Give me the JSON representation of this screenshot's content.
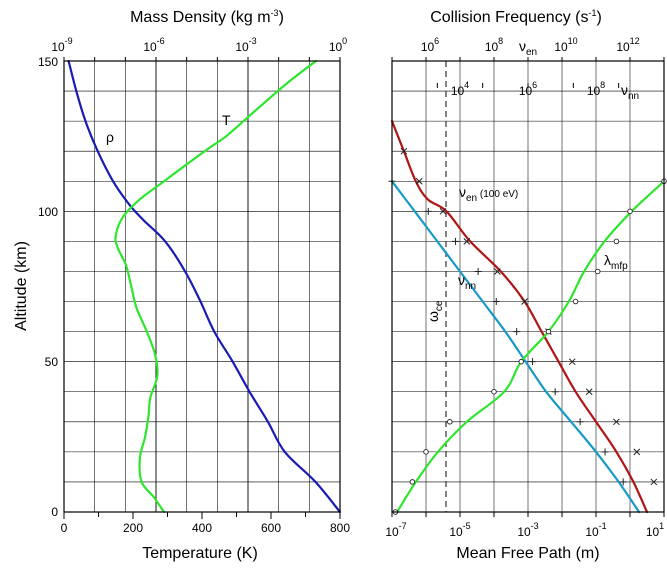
{
  "chart_data": [
    {
      "type": "line",
      "panel": "left",
      "title_prefix": "Mass Density (kg m",
      "title_exp": "-3",
      "title_suffix": ")",
      "xlabel": "Temperature (K)",
      "ylabel": "Altitude (km)",
      "xlim": [
        0,
        800
      ],
      "ylim": [
        0,
        150
      ],
      "x_ticks": [
        "0",
        "200",
        "400",
        "600",
        "800"
      ],
      "y_ticks": [
        "0",
        "50",
        "100",
        "150"
      ],
      "top_axis": {
        "scale": "log",
        "lim_exp": [
          -9,
          0
        ],
        "tick_base": "10",
        "tick_exps": [
          "-9",
          "-6",
          "-3",
          "0"
        ]
      },
      "series": [
        {
          "name": "ρ",
          "axis": "top",
          "color": "#1a1ab4",
          "points": [
            [
              -8.85,
              150
            ],
            [
              -8.6,
              140
            ],
            [
              -8.3,
              130
            ],
            [
              -7.9,
              120
            ],
            [
              -7.4,
              110
            ],
            [
              -6.85,
              102
            ],
            [
              -6.4,
              97
            ],
            [
              -5.7,
              90
            ],
            [
              -5.05,
              80
            ],
            [
              -4.55,
              70
            ],
            [
              -4.1,
              60
            ],
            [
              -3.5,
              50
            ],
            [
              -2.95,
              40
            ],
            [
              -2.35,
              30
            ],
            [
              -1.8,
              20
            ],
            [
              -0.8,
              10
            ],
            [
              0,
              0
            ]
          ]
        },
        {
          "name": "T",
          "axis": "bottom",
          "color": "#2ee62e",
          "points": [
            [
              730,
              150
            ],
            [
              640,
              142
            ],
            [
              540,
              132
            ],
            [
              470,
              125
            ],
            [
              420,
              121
            ],
            [
              360,
              116
            ],
            [
              290,
              110
            ],
            [
              220,
              104
            ],
            [
              170,
              98
            ],
            [
              150,
              92
            ],
            [
              155,
              88
            ],
            [
              180,
              82
            ],
            [
              195,
              75
            ],
            [
              210,
              68
            ],
            [
              240,
              60
            ],
            [
              265,
              52
            ],
            [
              270,
              45
            ],
            [
              250,
              38
            ],
            [
              245,
              32
            ],
            [
              235,
              25
            ],
            [
              220,
              18
            ],
            [
              225,
              10
            ],
            [
              260,
              5
            ],
            [
              290,
              0
            ]
          ]
        }
      ]
    },
    {
      "type": "line",
      "panel": "right",
      "title_prefix": "Collision Frequency (s",
      "title_exp": "-1",
      "title_suffix": ")",
      "xlabel": "Mean Free Path (m)",
      "ylim": [
        0,
        150
      ],
      "bottom_axis": {
        "scale": "log",
        "lim_exp": [
          -7,
          1
        ],
        "tick_base": "10",
        "tick_exps": [
          "-7",
          "-5",
          "-3",
          "-1",
          "1"
        ]
      },
      "top_axis_en": {
        "label_main": "ν",
        "label_sub": "en",
        "scale": "log",
        "lim_exp": [
          5,
          13
        ],
        "tick_base": "10",
        "tick_exps": [
          "6",
          "8",
          "10",
          "12"
        ]
      },
      "top_axis_nn": {
        "label_main": "ν",
        "label_sub": "nn",
        "scale": "log",
        "lim_exp": [
          3,
          9
        ],
        "tick_base": "10",
        "tick_exps": [
          "4",
          "6",
          "8"
        ]
      },
      "series": [
        {
          "name": "ν",
          "name_sub": "en",
          "name_suffix": " (100 eV)",
          "axis": "top_en",
          "color": "#b01515",
          "marker": "x",
          "points": [
            [
              5.0,
              130
            ],
            [
              5.35,
              120
            ],
            [
              5.7,
              110
            ],
            [
              6.05,
              104
            ],
            [
              6.6,
              100
            ],
            [
              7.3,
              90
            ],
            [
              8.2,
              80
            ],
            [
              8.9,
              70
            ],
            [
              9.4,
              60
            ],
            [
              9.9,
              50
            ],
            [
              10.4,
              40
            ],
            [
              11.0,
              30
            ],
            [
              11.6,
              20
            ],
            [
              12.1,
              10
            ],
            [
              12.5,
              0
            ]
          ],
          "marker_points": [
            [
              5.35,
              120
            ],
            [
              5.8,
              110
            ],
            [
              6.5,
              100
            ],
            [
              7.2,
              90
            ],
            [
              8.1,
              80
            ],
            [
              8.9,
              70
            ],
            [
              9.6,
              60
            ],
            [
              10.3,
              50
            ],
            [
              10.8,
              40
            ],
            [
              11.6,
              30
            ],
            [
              12.2,
              20
            ],
            [
              12.7,
              10
            ]
          ]
        },
        {
          "name": "ν",
          "name_sub": "nn",
          "axis": "top_nn",
          "color": "#189ac8",
          "marker": "plus",
          "points": [
            [
              3.0,
              110
            ],
            [
              3.5,
              100
            ],
            [
              4.0,
              90
            ],
            [
              4.5,
              80
            ],
            [
              5.0,
              70
            ],
            [
              5.5,
              60
            ],
            [
              5.95,
              50
            ],
            [
              6.4,
              40
            ],
            [
              6.95,
              30
            ],
            [
              7.5,
              20
            ],
            [
              8.0,
              10
            ],
            [
              8.45,
              0
            ]
          ],
          "marker_points": [
            [
              3.0,
              110
            ],
            [
              3.8,
              100
            ],
            [
              4.4,
              90
            ],
            [
              4.9,
              80
            ],
            [
              5.3,
              70
            ],
            [
              5.75,
              60
            ],
            [
              6.1,
              50
            ],
            [
              6.6,
              40
            ],
            [
              7.15,
              30
            ],
            [
              7.7,
              20
            ],
            [
              8.1,
              10
            ]
          ]
        },
        {
          "name": "λ",
          "name_sub": "mfp",
          "axis": "bottom",
          "color": "#2ee62e",
          "marker": "circle",
          "points": [
            [
              -6.85,
              0
            ],
            [
              -6.3,
              10
            ],
            [
              -5.65,
              20
            ],
            [
              -4.8,
              30
            ],
            [
              -3.7,
              40
            ],
            [
              -3.2,
              50
            ],
            [
              -2.4,
              60
            ],
            [
              -1.8,
              70
            ],
            [
              -1.35,
              80
            ],
            [
              -0.75,
              90
            ],
            [
              0.05,
              100
            ],
            [
              1.0,
              110
            ]
          ],
          "marker_points": [
            [
              -6.9,
              0
            ],
            [
              -6.4,
              10
            ],
            [
              -6.0,
              20
            ],
            [
              -5.3,
              30
            ],
            [
              -4.0,
              40
            ],
            [
              -3.2,
              50
            ],
            [
              -2.4,
              60
            ],
            [
              -1.6,
              70
            ],
            [
              -0.95,
              80
            ],
            [
              -0.4,
              90
            ],
            [
              0.0,
              100
            ],
            [
              1.0,
              110
            ]
          ]
        }
      ],
      "annotations": {
        "omega_main": "ω",
        "omega_sub": "ce",
        "omega_exp": -5.6
      }
    }
  ],
  "colors": {
    "density": "#1a1ab4",
    "temperature": "#2ee62e",
    "nu_en": "#b01515",
    "nu_nn": "#189ac8",
    "mfp": "#2ee62e"
  }
}
